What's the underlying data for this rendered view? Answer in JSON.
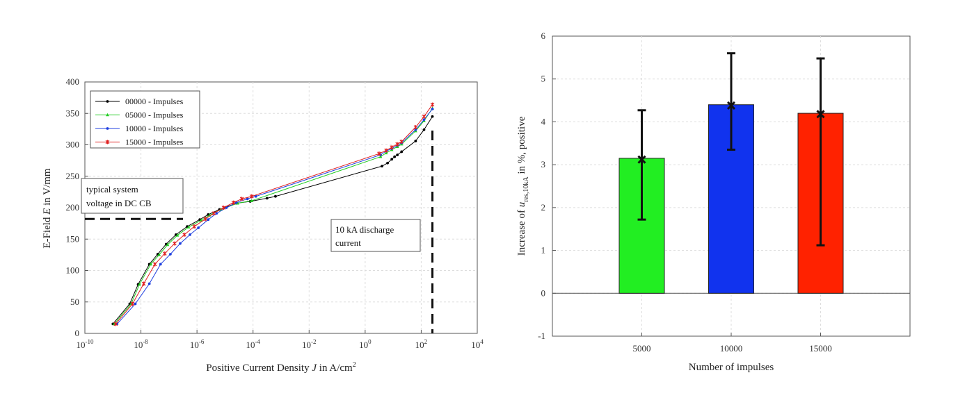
{
  "chart_data": [
    {
      "type": "line",
      "xscale": "log",
      "xlabel_prefix": "Positive Current Density ",
      "xlabel_var": "J",
      "xlabel_unit": " in A/cm",
      "xlabel_sup": "2",
      "ylabel_prefix": "E-Field ",
      "ylabel_var": "E",
      "ylabel_unit": " in V/mm",
      "xlim_exp": [
        -10,
        4
      ],
      "ylim": [
        0,
        400
      ],
      "x_ticks": [
        {
          "base": "10",
          "exp": "-10",
          "e": -10
        },
        {
          "base": "10",
          "exp": "-8",
          "e": -8
        },
        {
          "base": "10",
          "exp": "-6",
          "e": -6
        },
        {
          "base": "10",
          "exp": "-4",
          "e": -4
        },
        {
          "base": "10",
          "exp": "-2",
          "e": -2
        },
        {
          "base": "10",
          "exp": "0",
          "e": 0
        },
        {
          "base": "10",
          "exp": "2",
          "e": 2
        },
        {
          "base": "10",
          "exp": "4",
          "e": 4
        }
      ],
      "y_ticks": [
        "0",
        "50",
        "100",
        "150",
        "200",
        "250",
        "300",
        "350",
        "400"
      ],
      "series": [
        {
          "name": "00000 - Impulses",
          "color": "#000000",
          "marker": "dot",
          "points": [
            [
              -9.0,
              15
            ],
            [
              -8.4,
              47
            ],
            [
              -8.1,
              78
            ],
            [
              -7.7,
              110
            ],
            [
              -7.4,
              126
            ],
            [
              -7.1,
              142
            ],
            [
              -6.75,
              157
            ],
            [
              -6.35,
              170
            ],
            [
              -5.9,
              181
            ],
            [
              -5.6,
              189
            ],
            [
              -5.2,
              197
            ],
            [
              -4.6,
              207
            ],
            [
              -4.1,
              210
            ],
            [
              -3.5,
              215
            ],
            [
              -3.2,
              218
            ],
            [
              0.6,
              266
            ],
            [
              0.8,
              271
            ],
            [
              0.95,
              277
            ],
            [
              1.05,
              281
            ],
            [
              1.15,
              284
            ],
            [
              1.3,
              289
            ],
            [
              1.8,
              306
            ],
            [
              2.1,
              324
            ],
            [
              2.4,
              345
            ]
          ]
        },
        {
          "name": "05000 - Impulses",
          "color": "#22cc22",
          "marker": "triangle",
          "points": [
            [
              -8.95,
              15
            ],
            [
              -8.35,
              47
            ],
            [
              -8.05,
              78
            ],
            [
              -7.65,
              110
            ],
            [
              -7.35,
              125
            ],
            [
              -7.05,
              141
            ],
            [
              -6.7,
              156
            ],
            [
              -6.3,
              169
            ],
            [
              -5.85,
              180
            ],
            [
              -5.55,
              188
            ],
            [
              -5.15,
              197
            ],
            [
              -4.55,
              207
            ],
            [
              -4.05,
              211
            ],
            [
              0.55,
              281
            ],
            [
              0.75,
              287
            ],
            [
              0.95,
              292
            ],
            [
              1.15,
              297
            ],
            [
              1.3,
              301
            ],
            [
              1.8,
              322
            ],
            [
              2.1,
              338
            ],
            [
              2.4,
              358
            ]
          ]
        },
        {
          "name": "10000 - Impulses",
          "color": "#1f3fe0",
          "marker": "dot",
          "points": [
            [
              -8.85,
              15
            ],
            [
              -8.2,
              47
            ],
            [
              -7.7,
              79
            ],
            [
              -7.3,
              110
            ],
            [
              -6.95,
              126
            ],
            [
              -6.6,
              143
            ],
            [
              -6.25,
              157
            ],
            [
              -5.95,
              168
            ],
            [
              -5.6,
              181
            ],
            [
              -5.3,
              191
            ],
            [
              -4.95,
              200
            ],
            [
              -4.6,
              208
            ],
            [
              -4.2,
              214
            ],
            [
              -3.9,
              218
            ],
            [
              0.55,
              284
            ],
            [
              0.75,
              290
            ],
            [
              0.95,
              294
            ],
            [
              1.15,
              299
            ],
            [
              1.3,
              303
            ],
            [
              1.8,
              324
            ],
            [
              2.1,
              340
            ],
            [
              2.4,
              357
            ]
          ]
        },
        {
          "name": "15000 - Impulses",
          "color": "#e02020",
          "marker": "star",
          "points": [
            [
              -8.9,
              15
            ],
            [
              -8.3,
              47
            ],
            [
              -7.9,
              79
            ],
            [
              -7.5,
              110
            ],
            [
              -7.15,
              127
            ],
            [
              -6.8,
              143
            ],
            [
              -6.45,
              157
            ],
            [
              -6.1,
              170
            ],
            [
              -5.7,
              182
            ],
            [
              -5.4,
              191
            ],
            [
              -5.05,
              200
            ],
            [
              -4.7,
              208
            ],
            [
              -4.4,
              214
            ],
            [
              -4.05,
              218
            ],
            [
              0.5,
              286
            ],
            [
              0.75,
              291
            ],
            [
              0.95,
              296
            ],
            [
              1.15,
              301
            ],
            [
              1.3,
              305
            ],
            [
              1.8,
              328
            ],
            [
              2.1,
              345
            ],
            [
              2.4,
              364
            ]
          ]
        }
      ],
      "annotations": {
        "system_voltage_l1": "typical system",
        "system_voltage_l2": "voltage in DC CB",
        "discharge_l1": "10 kA discharge",
        "discharge_l2": "current",
        "hline_y": 182,
        "vline_x_exp": 2.4
      },
      "legend_position": "top-left"
    },
    {
      "type": "bar",
      "categories": [
        "5000",
        "10000",
        "15000"
      ],
      "values": [
        3.15,
        4.4,
        4.2
      ],
      "markers": [
        3.12,
        4.38,
        4.18
      ],
      "error_low": [
        1.72,
        3.35,
        1.12
      ],
      "error_high": [
        4.27,
        5.6,
        5.48
      ],
      "colors": [
        "#22ee22",
        "#1133ee",
        "#ff2200"
      ],
      "xlabel": "Number of impulses",
      "ylabel_prefix": "Increase of ",
      "ylabel_var": "u",
      "ylabel_sub": "res,10kA",
      "ylabel_suffix": " in %, positive",
      "ylim": [
        -1,
        6
      ],
      "y_ticks": [
        "-1",
        "0",
        "1",
        "2",
        "3",
        "4",
        "5",
        "6"
      ],
      "grid": true
    }
  ]
}
